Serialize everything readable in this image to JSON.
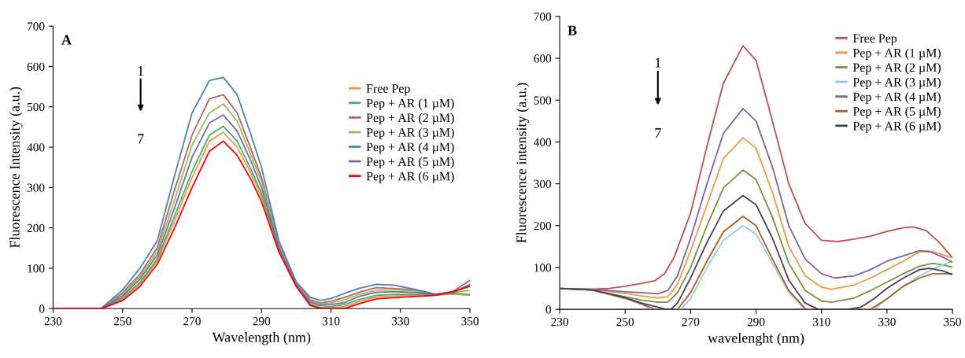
{
  "chart_data": [
    {
      "type": "line",
      "xlabel": "Wavelength (nm)",
      "ylabel": "Fluorescence Intensity (a.u.)",
      "annotations": [
        "A",
        "1",
        "7"
      ],
      "xlim": [
        230,
        350
      ],
      "ylim": [
        0,
        700
      ],
      "xticks": [
        230,
        250,
        270,
        290,
        310,
        330,
        350
      ],
      "yticks": [
        0,
        100,
        200,
        300,
        400,
        500,
        600,
        700
      ],
      "grid": false,
      "legend": "right",
      "line_style": "solid",
      "marker": "none",
      "x": [
        230,
        240,
        244,
        250,
        255,
        260,
        265,
        270,
        275,
        279,
        283,
        287,
        290,
        295,
        300,
        304,
        307,
        310,
        314,
        318,
        323,
        328,
        334,
        340,
        345,
        350
      ],
      "series": [
        {
          "name": "Free Pep",
          "color": "#f79646",
          "values": [
            null,
            null,
            0,
            24,
            61,
            118,
            218,
            325,
            415,
            437,
            400,
            335,
            277,
            144,
            56,
            10,
            1,
            2,
            5,
            17,
            29,
            31,
            33,
            33,
            36,
            33
          ]
        },
        {
          "name": "Pep + AR (1 µM)",
          "color": "#3cb371",
          "values": [
            null,
            null,
            0,
            26,
            65,
            123,
            230,
            340,
            430,
            452,
            415,
            345,
            285,
            146,
            57,
            12,
            3,
            5,
            10,
            22,
            33,
            35,
            35,
            34,
            38,
            35
          ]
        },
        {
          "name": "Pep + AR (2 µM)",
          "color": "#b4645f",
          "values": [
            null,
            null,
            1,
            39,
            85,
            151,
            295,
            430,
            520,
            530,
            485,
            395,
            325,
            160,
            63,
            22,
            14,
            18,
            28,
            40,
            52,
            50,
            46,
            35,
            42,
            70
          ]
        },
        {
          "name": "Pep + AR (3 µM)",
          "color": "#9bbb59",
          "values": [
            null,
            null,
            1,
            35,
            79,
            142,
            270,
            405,
            485,
            507,
            465,
            380,
            315,
            156,
            61,
            19,
            11,
            14,
            22,
            35,
            45,
            47,
            44,
            35,
            40,
            45
          ]
        },
        {
          "name": "Pep + AR (4 µM)",
          "color": "#4f81bd",
          "values": [
            null,
            null,
            2,
            46,
            100,
            168,
            330,
            485,
            565,
            573,
            530,
            430,
            350,
            168,
            66,
            28,
            20,
            25,
            38,
            50,
            60,
            58,
            48,
            36,
            40,
            60
          ]
        },
        {
          "name": "Pep + AR (5 µM)",
          "color": "#8064a2",
          "values": [
            null,
            null,
            1,
            31,
            73,
            133,
            250,
            375,
            460,
            480,
            440,
            365,
            300,
            151,
            59,
            16,
            8,
            10,
            15,
            30,
            40,
            42,
            40,
            35,
            40,
            58
          ]
        },
        {
          "name": "Pep + AR (6 µM)",
          "color": "#ff0000",
          "values": [
            0,
            0,
            0,
            20,
            55,
            110,
            200,
            300,
            390,
            415,
            380,
            320,
            265,
            140,
            55,
            8,
            0,
            0,
            0,
            12,
            24,
            27,
            30,
            33,
            42,
            55
          ]
        }
      ]
    },
    {
      "type": "line",
      "xlabel": "wavelenght (nm)",
      "ylabel": "Fluorescence intensity (a.u.)",
      "annotations": [
        "B",
        "1",
        "7"
      ],
      "xlim": [
        230,
        350
      ],
      "ylim": [
        0,
        700
      ],
      "xticks": [
        230,
        250,
        270,
        290,
        310,
        330,
        350
      ],
      "yticks": [
        0,
        100,
        200,
        300,
        400,
        500,
        600,
        700
      ],
      "grid": false,
      "legend": "top right",
      "line_style": "solid",
      "marker": "none",
      "series": [
        {
          "name": "Free Pep",
          "color": "#c0504d",
          "x": [
            230,
            240,
            245,
            250,
            255,
            259,
            262,
            265,
            270,
            275,
            280,
            286,
            290,
            295,
            300,
            305,
            310,
            315,
            320,
            325,
            330,
            335,
            338,
            342,
            346,
            350
          ],
          "values": [
            50,
            48,
            50,
            55,
            62,
            68,
            85,
            125,
            230,
            390,
            540,
            630,
            595,
            450,
            300,
            205,
            165,
            162,
            168,
            175,
            186,
            195,
            197,
            188,
            160,
            123
          ]
        },
        {
          "name": "Pep + AR (1 µM)",
          "color": "#f79646",
          "x": [
            230,
            240,
            250,
            255,
            260,
            263,
            266,
            270,
            275,
            280,
            286,
            290,
            295,
            300,
            305,
            310,
            313,
            320,
            325,
            330,
            335,
            340,
            344,
            348,
            350
          ],
          "values": [
            50,
            47,
            38,
            32,
            27,
            30,
            60,
            140,
            250,
            360,
            410,
            385,
            280,
            150,
            80,
            53,
            48,
            58,
            75,
            95,
            115,
            138,
            138,
            128,
            123
          ]
        },
        {
          "name": "Pep + AR (2 µM)",
          "color": "#77933c",
          "x": [
            230,
            240,
            250,
            255,
            260,
            263,
            266,
            270,
            275,
            280,
            286,
            290,
            295,
            300,
            305,
            310,
            313,
            320,
            325,
            330,
            335,
            340,
            344,
            348,
            350
          ],
          "values": [
            50,
            46,
            30,
            22,
            17,
            17,
            40,
            100,
            200,
            290,
            333,
            310,
            220,
            110,
            45,
            20,
            17,
            27,
            45,
            65,
            85,
            103,
            110,
            105,
            100
          ]
        },
        {
          "name": "Pep + AR (3 µM)",
          "color": "#93cddd",
          "x": [
            230,
            240,
            250,
            255,
            258,
            267,
            270,
            275,
            280,
            286,
            290,
            295,
            300,
            305,
            326,
            330,
            335,
            340,
            345,
            350
          ],
          "values": [
            50,
            46,
            25,
            12,
            0,
            0,
            25,
            100,
            165,
            200,
            180,
            110,
            40,
            0,
            0,
            25,
            55,
            80,
            100,
            115
          ]
        },
        {
          "name": "Pep + AR (4 µM)",
          "color": "#8064a2",
          "x": [
            230,
            240,
            250,
            255,
            260,
            263,
            266,
            270,
            275,
            280,
            286,
            290,
            295,
            300,
            305,
            310,
            314,
            320,
            325,
            330,
            335,
            340,
            343,
            347,
            350
          ],
          "values": [
            50,
            48,
            42,
            40,
            37,
            45,
            80,
            170,
            300,
            420,
            480,
            450,
            340,
            200,
            120,
            85,
            75,
            80,
            95,
            115,
            128,
            140,
            138,
            125,
            112
          ]
        },
        {
          "name": "Pep + AR (5 µM)",
          "color": "#b35c1e",
          "x": [
            230,
            240,
            250,
            255,
            259,
            266,
            268,
            270,
            275,
            280,
            286,
            290,
            295,
            300,
            305,
            306,
            325,
            330,
            335,
            340,
            344,
            350
          ],
          "values": [
            50,
            46,
            27,
            13,
            0,
            0,
            20,
            40,
            115,
            185,
            222,
            200,
            120,
            45,
            2,
            0,
            0,
            25,
            55,
            75,
            85,
            85
          ]
        },
        {
          "name": "Pep + AR (6 µM)",
          "color": "#4b3a62",
          "x": [
            230,
            240,
            250,
            255,
            260,
            262,
            264,
            266,
            270,
            275,
            280,
            286,
            290,
            295,
            300,
            305,
            309,
            318,
            322,
            326,
            330,
            335,
            340,
            343,
            347,
            350
          ],
          "values": [
            50,
            46,
            28,
            15,
            5,
            1,
            0,
            15,
            75,
            160,
            235,
            272,
            250,
            170,
            70,
            15,
            0,
            0,
            5,
            25,
            50,
            75,
            95,
            98,
            92,
            83
          ]
        }
      ]
    }
  ]
}
